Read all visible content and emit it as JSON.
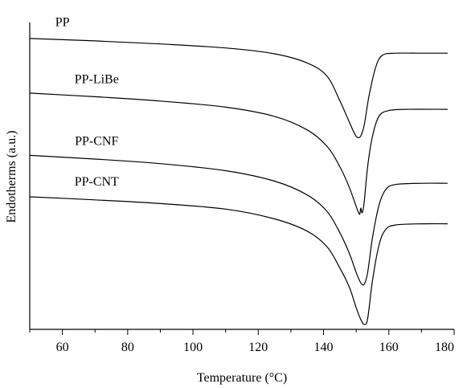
{
  "chart_data": {
    "type": "line",
    "title": "",
    "xlabel": "Temperature (°C)",
    "ylabel": "Endotherms (a.u.)",
    "xlim": [
      50,
      180
    ],
    "ylim": [
      0,
      100
    ],
    "x_ticks": [
      60,
      80,
      100,
      120,
      140,
      160,
      180
    ],
    "y_ticks": [],
    "grid": false,
    "legend": "none",
    "series": [
      {
        "name": "PP",
        "points": [
          [
            50,
            94.8
          ],
          [
            70,
            94.0
          ],
          [
            90,
            93.0
          ],
          [
            110,
            91.7
          ],
          [
            125,
            89.8
          ],
          [
            135,
            86.8
          ],
          [
            141,
            82.6
          ],
          [
            145,
            74.5
          ],
          [
            147.5,
            68.5
          ],
          [
            149.5,
            63.8
          ],
          [
            150.5,
            62.5
          ],
          [
            151.5,
            63.2
          ],
          [
            152.5,
            66.8
          ],
          [
            154,
            76.5
          ],
          [
            156,
            85.5
          ],
          [
            158,
            89.3
          ],
          [
            162,
            90.0
          ],
          [
            170,
            90.0
          ],
          [
            178,
            90.0
          ]
        ]
      },
      {
        "name": "PP-LiBe",
        "points": [
          [
            50,
            77.0
          ],
          [
            70,
            75.8
          ],
          [
            90,
            74.4
          ],
          [
            110,
            72.4
          ],
          [
            125,
            69.4
          ],
          [
            135,
            65.0
          ],
          [
            141,
            59.7
          ],
          [
            145,
            53.0
          ],
          [
            148,
            46.0
          ],
          [
            150,
            40.0
          ],
          [
            151,
            37.5
          ],
          [
            151.4,
            39.5
          ],
          [
            151.8,
            38.0
          ],
          [
            152.4,
            41.0
          ],
          [
            153.5,
            53.0
          ],
          [
            155,
            63.0
          ],
          [
            157,
            69.5
          ],
          [
            160,
            71.3
          ],
          [
            165,
            71.7
          ],
          [
            178,
            71.7
          ]
        ]
      },
      {
        "name": "PP-CNF",
        "points": [
          [
            50,
            56.7
          ],
          [
            70,
            55.5
          ],
          [
            90,
            54.0
          ],
          [
            110,
            51.7
          ],
          [
            125,
            48.3
          ],
          [
            135,
            43.8
          ],
          [
            141,
            38.5
          ],
          [
            145,
            31.5
          ],
          [
            148,
            24.5
          ],
          [
            150,
            18.5
          ],
          [
            151.5,
            15.0
          ],
          [
            152.5,
            14.8
          ],
          [
            153.5,
            18.5
          ],
          [
            155,
            30.0
          ],
          [
            157,
            40.5
          ],
          [
            159,
            45.5
          ],
          [
            162,
            47.2
          ],
          [
            170,
            47.6
          ],
          [
            178,
            47.6
          ]
        ]
      },
      {
        "name": "PP-CNT",
        "points": [
          [
            50,
            43.2
          ],
          [
            70,
            42.2
          ],
          [
            90,
            41.0
          ],
          [
            110,
            39.2
          ],
          [
            125,
            36.0
          ],
          [
            135,
            32.0
          ],
          [
            141,
            27.0
          ],
          [
            145,
            20.0
          ],
          [
            148,
            13.5
          ],
          [
            150,
            7.0
          ],
          [
            151.5,
            3.0
          ],
          [
            152.5,
            1.6
          ],
          [
            153.5,
            3.5
          ],
          [
            155,
            16.0
          ],
          [
            157,
            27.5
          ],
          [
            159,
            32.5
          ],
          [
            162,
            34.0
          ],
          [
            170,
            34.4
          ],
          [
            178,
            34.4
          ]
        ]
      }
    ],
    "annotations": [
      {
        "series": "PP",
        "text": "PP",
        "x": 60,
        "y": 98.8
      },
      {
        "series": "PP-LiBe",
        "text": "PP-LiBe",
        "x": 70.5,
        "y": 80.2
      },
      {
        "series": "PP-CNF",
        "text": "PP-CNF",
        "x": 70.5,
        "y": 60.1
      },
      {
        "series": "PP-CNT",
        "text": "PP-CNT",
        "x": 70.5,
        "y": 46.8
      }
    ]
  }
}
